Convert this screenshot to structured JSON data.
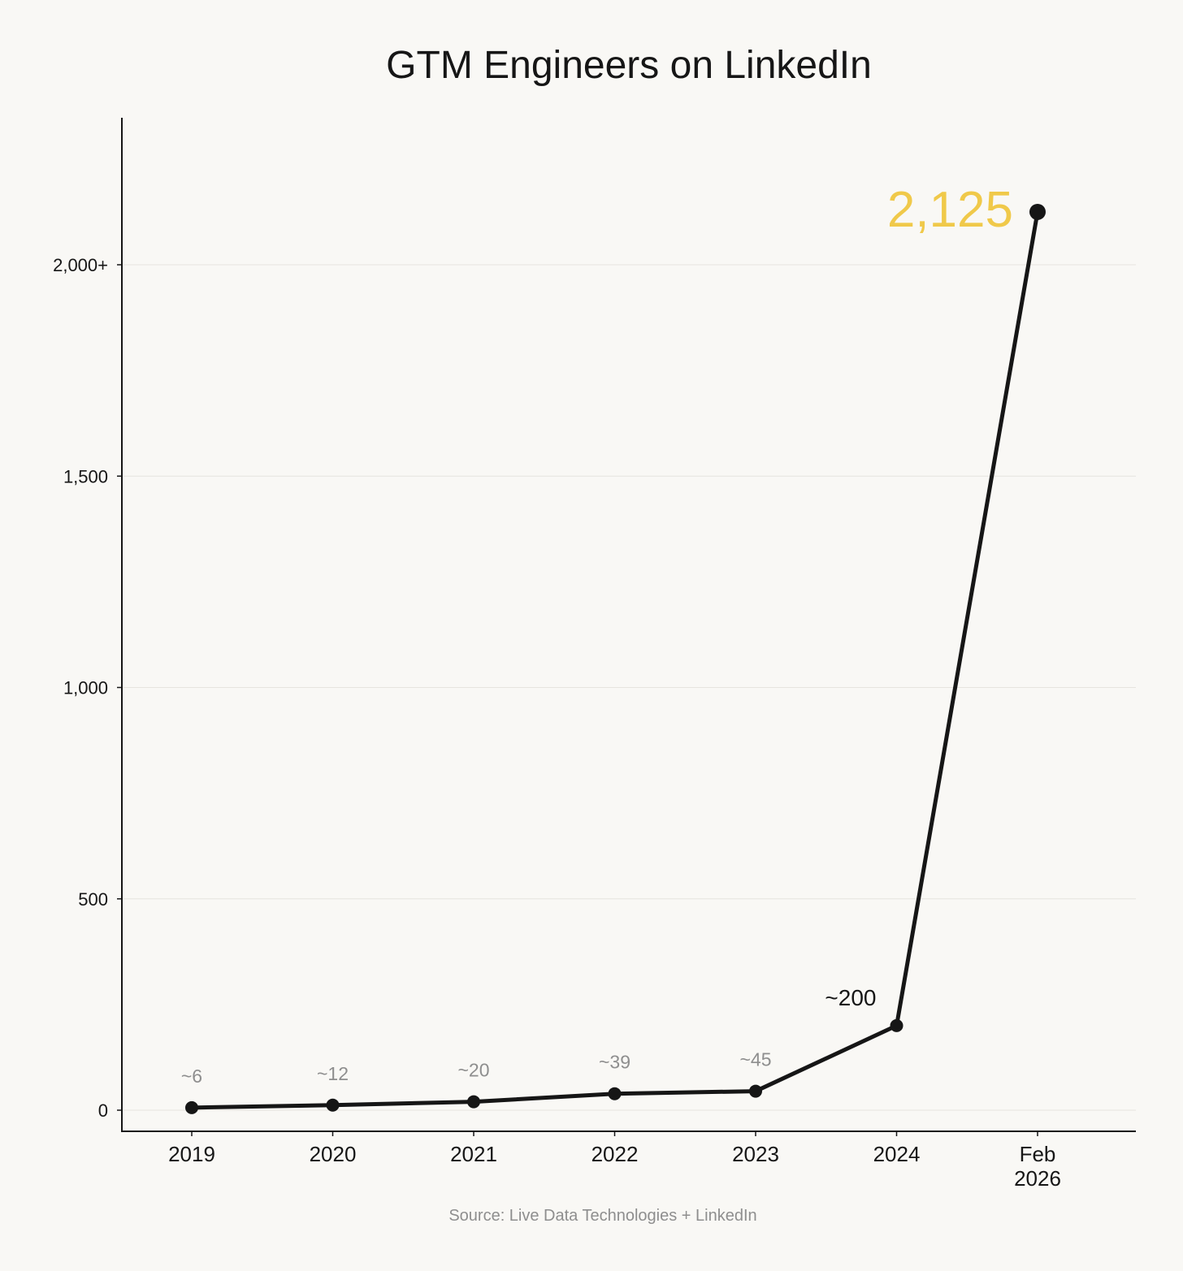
{
  "chart_data": {
    "type": "line",
    "title": "GTM Engineers on LinkedIn",
    "xlabel": "",
    "ylabel": "",
    "categories": [
      "2019",
      "2020",
      "2021",
      "2022",
      "2023",
      "2024",
      "Feb 2026"
    ],
    "category_lines": [
      [
        "2019"
      ],
      [
        "2020"
      ],
      [
        "2021"
      ],
      [
        "2022"
      ],
      [
        "2023"
      ],
      [
        "2024"
      ],
      [
        "Feb",
        "2026"
      ]
    ],
    "values": [
      6,
      12,
      20,
      39,
      45,
      200,
      2125
    ],
    "data_labels": [
      "~6",
      "~12",
      "~20",
      "~39",
      "~45",
      "~200",
      "2,125"
    ],
    "ylim": [
      -50,
      2350
    ],
    "yticks": [
      0,
      500,
      1000,
      1500,
      2000
    ],
    "ytick_labels": [
      "0",
      "500",
      "1,000",
      "1,500",
      "2,000+"
    ],
    "grid": true,
    "line_color": "#161616",
    "highlight_color": "#f0c94a",
    "muted_label_color": "#8e8e8e"
  },
  "source": "Source: Live Data Technologies + LinkedIn"
}
